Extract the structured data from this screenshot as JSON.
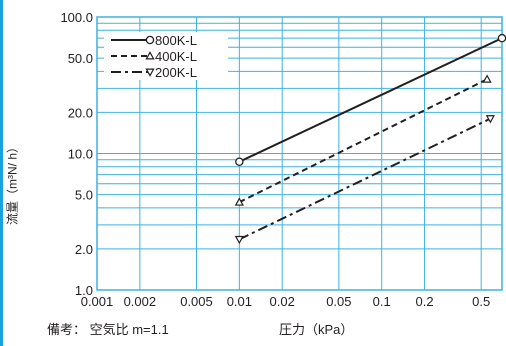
{
  "colors": {
    "accent": "#1ba1dc",
    "grid": "#3fb2e3",
    "ink": "#231f20"
  },
  "note": "備考： 空気比 m=1.1",
  "chart_data": {
    "type": "line",
    "xlabel": "圧力（kPa）",
    "ylabel": "流量（m³N/ h）",
    "x_scale": "log",
    "y_scale": "log",
    "xlim": [
      0.001,
      0.7
    ],
    "ylim": [
      1.0,
      100.0
    ],
    "x_ticks": [
      0.001,
      0.002,
      0.005,
      0.01,
      0.02,
      0.05,
      0.1,
      0.2,
      0.5
    ],
    "x_tick_labels": [
      "0.001",
      "0.002",
      "0.005",
      "0.01",
      "0.02",
      "0.05",
      "0.1",
      "0.2",
      "0.5"
    ],
    "y_ticks": [
      1.0,
      2.0,
      5.0,
      10.0,
      20.0,
      50.0,
      100.0
    ],
    "y_tick_labels": [
      "1.0",
      "2.0",
      "5.0",
      "10.0",
      "20.0",
      "50.0",
      "100.0"
    ],
    "grid": true,
    "legend_position": "top-left",
    "series": [
      {
        "name": "800K-L",
        "marker": "circle",
        "dash": "solid",
        "x": [
          0.01,
          0.7
        ],
        "y": [
          8.7,
          70.0
        ]
      },
      {
        "name": "400K-L",
        "marker": "triangle-up",
        "dash": "dashed",
        "x": [
          0.01,
          0.55
        ],
        "y": [
          4.4,
          35.0
        ]
      },
      {
        "name": "200K-L",
        "marker": "triangle-down",
        "dash": "dashdot",
        "x": [
          0.01,
          0.58
        ],
        "y": [
          2.35,
          18.0
        ]
      }
    ]
  }
}
